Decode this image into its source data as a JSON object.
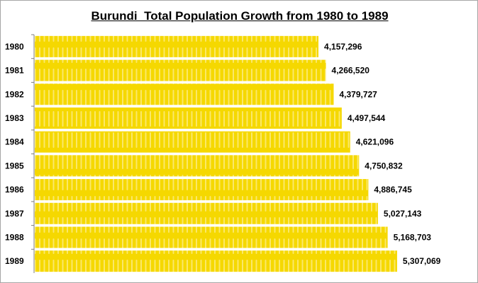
{
  "chart_data": {
    "type": "bar",
    "orientation": "horizontal",
    "title": "Burundi  Total Population Growth from 1980 to 1989",
    "categories": [
      "1980",
      "1981",
      "1982",
      "1983",
      "1984",
      "1985",
      "1986",
      "1987",
      "1988",
      "1989"
    ],
    "values": [
      4157296,
      4266520,
      4379727,
      4497544,
      4621096,
      4750832,
      4886745,
      5027143,
      5168703,
      5307069
    ],
    "data_labels": [
      "4,157,296",
      "4,266,520",
      "4,379,727",
      "4,497,544",
      "4,621,096",
      "4,750,832",
      "4,886,745",
      "5,027,143",
      "5,168,703",
      "5,307,069"
    ],
    "xlabel": "",
    "ylabel": "",
    "xlim": [
      0,
      6500000
    ],
    "grid": false,
    "legend": "none",
    "bar_color": "#f5d800",
    "stripe_color": "#fbe86a"
  }
}
